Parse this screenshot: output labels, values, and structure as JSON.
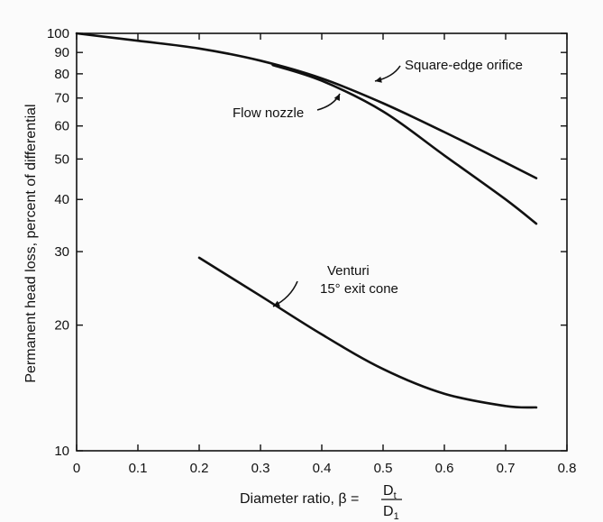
{
  "chart_data": {
    "type": "line",
    "xlabel": "Diameter ratio, β =",
    "xlabel_fraction": {
      "numerator": "D",
      "numerator_sub": "t",
      "denominator": "D",
      "denominator_sub": "1"
    },
    "ylabel": "Permanent head loss, percent of differential",
    "xlim": [
      0,
      0.8
    ],
    "ylim": [
      10,
      100
    ],
    "yscale": "log",
    "xticks": [
      0,
      0.1,
      0.2,
      0.3,
      0.4,
      0.5,
      0.6,
      0.7,
      0.8
    ],
    "xtick_labels": [
      "0",
      "0.1",
      "0.2",
      "0.3",
      "0.4",
      "0.5",
      "0.6",
      "0.7",
      "0.8"
    ],
    "yticks": [
      10,
      20,
      30,
      40,
      50,
      60,
      70,
      80,
      90,
      100
    ],
    "ytick_labels": [
      "10",
      "20",
      "30",
      "40",
      "50",
      "60",
      "70",
      "80",
      "90",
      "100"
    ],
    "grid": false,
    "series": [
      {
        "name": "Square-edge orifice",
        "x": [
          0,
          0.1,
          0.2,
          0.3,
          0.4,
          0.5,
          0.6,
          0.7,
          0.75
        ],
        "y": [
          100,
          96,
          92,
          86,
          78,
          68,
          58,
          49,
          45
        ]
      },
      {
        "name": "Flow nozzle",
        "x": [
          0.32,
          0.4,
          0.5,
          0.6,
          0.7,
          0.75
        ],
        "y": [
          84,
          77,
          65,
          51,
          40,
          35
        ]
      },
      {
        "name": "Venturi 15° exit cone",
        "x": [
          0.2,
          0.3,
          0.4,
          0.5,
          0.6,
          0.7,
          0.75
        ],
        "y": [
          29,
          23.5,
          19,
          15.7,
          13.7,
          12.8,
          12.7
        ]
      }
    ],
    "annotations": [
      {
        "text": "Square-edge orifice",
        "target": "Square-edge orifice"
      },
      {
        "text": "Flow nozzle",
        "target": "Flow nozzle"
      },
      {
        "text": "Venturi",
        "target": "Venturi 15° exit cone"
      },
      {
        "text": "15° exit cone",
        "target": "Venturi 15° exit cone"
      }
    ]
  }
}
